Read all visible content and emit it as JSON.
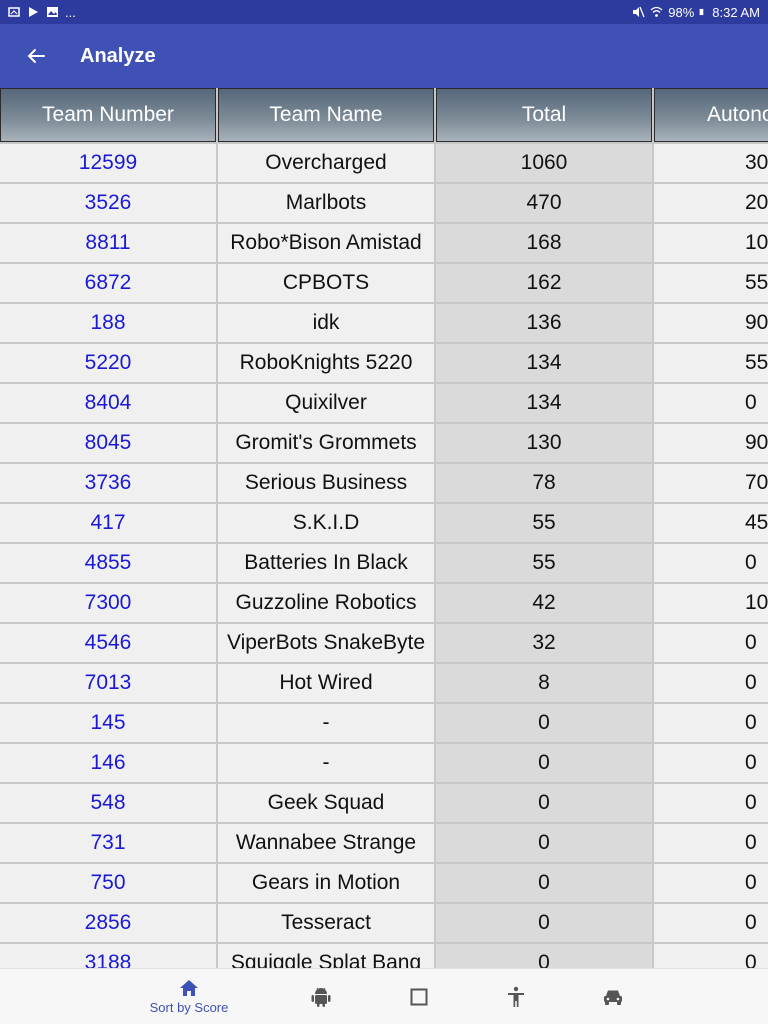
{
  "status_bar": {
    "left_text": "...",
    "battery": "98%",
    "time": "8:32 AM"
  },
  "app_bar": {
    "title": "Analyze"
  },
  "table": {
    "headers": [
      "Team Number",
      "Team Name",
      "Total",
      "Autono"
    ],
    "rows": [
      {
        "number": "12599",
        "name": "Overcharged",
        "total": "1060",
        "auto": "30"
      },
      {
        "number": "3526",
        "name": "Marlbots",
        "total": "470",
        "auto": "20"
      },
      {
        "number": "8811",
        "name": "Robo*Bison Amistad",
        "total": "168",
        "auto": "10"
      },
      {
        "number": "6872",
        "name": "CPBOTS",
        "total": "162",
        "auto": "55"
      },
      {
        "number": "188",
        "name": "idk",
        "total": "136",
        "auto": "90"
      },
      {
        "number": "5220",
        "name": "RoboKnights 5220",
        "total": "134",
        "auto": "55"
      },
      {
        "number": "8404",
        "name": "Quixilver",
        "total": "134",
        "auto": "0"
      },
      {
        "number": "8045",
        "name": "Gromit's Grommets",
        "total": "130",
        "auto": "90"
      },
      {
        "number": "3736",
        "name": "Serious Business",
        "total": "78",
        "auto": "70"
      },
      {
        "number": "417",
        "name": "S.K.I.D",
        "total": "55",
        "auto": "45"
      },
      {
        "number": "4855",
        "name": "Batteries In Black",
        "total": "55",
        "auto": "0"
      },
      {
        "number": "7300",
        "name": "Guzzoline Robotics",
        "total": "42",
        "auto": "10"
      },
      {
        "number": "4546",
        "name": "ViperBots SnakeByte",
        "total": "32",
        "auto": "0"
      },
      {
        "number": "7013",
        "name": "Hot Wired",
        "total": "8",
        "auto": "0"
      },
      {
        "number": "145",
        "name": "-",
        "total": "0",
        "auto": "0"
      },
      {
        "number": "146",
        "name": "-",
        "total": "0",
        "auto": "0"
      },
      {
        "number": "548",
        "name": "Geek Squad",
        "total": "0",
        "auto": "0"
      },
      {
        "number": "731",
        "name": "Wannabee Strange",
        "total": "0",
        "auto": "0"
      },
      {
        "number": "750",
        "name": "Gears in Motion",
        "total": "0",
        "auto": "0"
      },
      {
        "number": "2856",
        "name": "Tesseract",
        "total": "0",
        "auto": "0"
      },
      {
        "number": "3188",
        "name": "Squiggle Splat Bang",
        "total": "0",
        "auto": "0"
      }
    ]
  },
  "bottom_nav": {
    "items": [
      {
        "icon": "home-icon",
        "label": "Sort by Score"
      },
      {
        "icon": "android-icon",
        "label": ""
      },
      {
        "icon": "square-icon",
        "label": ""
      },
      {
        "icon": "accessibility-icon",
        "label": ""
      },
      {
        "icon": "car-icon",
        "label": ""
      }
    ],
    "active_color": "#3f51b5",
    "inactive_color": "#555555"
  },
  "colors": {
    "app_bar": "#3f51b5",
    "status_bar": "#2d3a9e",
    "team_number": "#1a1ad6"
  }
}
